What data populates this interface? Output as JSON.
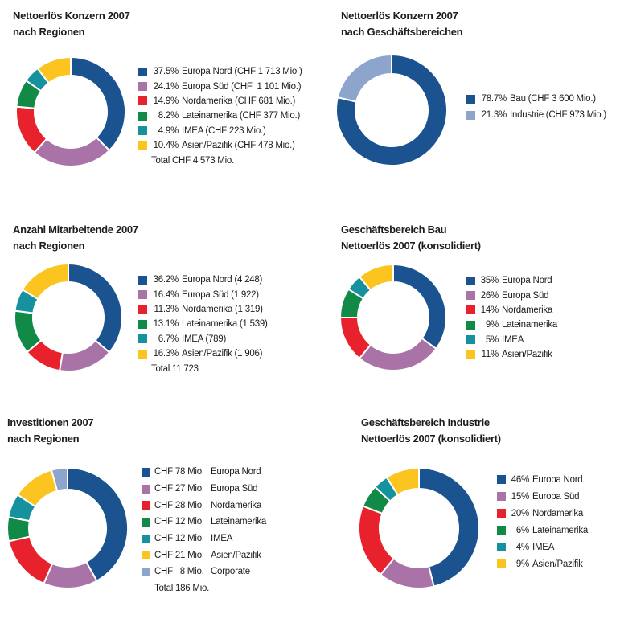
{
  "colors": {
    "europa_nord": "#1a5390",
    "europa_sud": "#a973a8",
    "nordamerika": "#e8222d",
    "lateinamerika": "#108a46",
    "imea": "#16919e",
    "asien_pazifik": "#fbc41e",
    "corporate": "#8da5cd",
    "bau": "#1a5390",
    "industrie": "#8da5cd",
    "text": "#1d1d1b",
    "background": "#ffffff"
  },
  "chart_data": [
    {
      "type": "donut",
      "title_lines": [
        "Nettoerlös Konzern 2007",
        "nach Regionen"
      ],
      "legend_position": "right",
      "total_label": "Total CHF 4 573 Mio.",
      "segments": [
        {
          "pct_label": "37.5%",
          "label": "Europa Nord (CHF 1 713 Mio.)",
          "value": 37.5,
          "color_key": "europa_nord"
        },
        {
          "pct_label": "24.1%",
          "label": "Europa Süd (CHF  1 101 Mio.)",
          "value": 24.1,
          "color_key": "europa_sud"
        },
        {
          "pct_label": "14.9%",
          "label": "Nordamerika (CHF 681 Mio.)",
          "value": 14.9,
          "color_key": "nordamerika"
        },
        {
          "pct_label": "8.2%",
          "label": "Lateinamerika (CHF 377 Mio.)",
          "value": 8.2,
          "color_key": "lateinamerika"
        },
        {
          "pct_label": "4.9%",
          "label": "IMEA (CHF 223 Mio.)",
          "value": 4.9,
          "color_key": "imea"
        },
        {
          "pct_label": "10.4%",
          "label": "Asien/Pazifik (CHF 478 Mio.)",
          "value": 10.4,
          "color_key": "asien_pazifik"
        }
      ]
    },
    {
      "type": "donut",
      "title_lines": [
        "Nettoerlös Konzern 2007",
        "nach Geschäftsbereichen"
      ],
      "legend_position": "right",
      "total_label": "",
      "segments": [
        {
          "pct_label": "78.7%",
          "label": "Bau (CHF 3 600 Mio.)",
          "value": 78.7,
          "color_key": "bau"
        },
        {
          "pct_label": "21.3%",
          "label": "Industrie (CHF 973 Mio.)",
          "value": 21.3,
          "color_key": "industrie"
        }
      ]
    },
    {
      "type": "donut",
      "title_lines": [
        "Anzahl Mitarbeitende 2007",
        "nach Regionen"
      ],
      "legend_position": "right",
      "total_label": "Total 11 723",
      "segments": [
        {
          "pct_label": "36.2%",
          "label": "Europa Nord (4 248)",
          "value": 36.2,
          "color_key": "europa_nord"
        },
        {
          "pct_label": "16.4%",
          "label": "Europa Süd (1 922)",
          "value": 16.4,
          "color_key": "europa_sud"
        },
        {
          "pct_label": "11.3%",
          "label": "Nordamerika (1 319)",
          "value": 11.3,
          "color_key": "nordamerika"
        },
        {
          "pct_label": "13.1%",
          "label": "Lateinamerika (1 539)",
          "value": 13.1,
          "color_key": "lateinamerika"
        },
        {
          "pct_label": "6.7%",
          "label": "IMEA (789)",
          "value": 6.7,
          "color_key": "imea"
        },
        {
          "pct_label": "16.3%",
          "label": "Asien/Pazifik (1 906)",
          "value": 16.3,
          "color_key": "asien_pazifik"
        }
      ]
    },
    {
      "type": "donut",
      "title_lines": [
        "Geschäftsbereich Bau",
        "Nettoerlös 2007 (konsolidiert)"
      ],
      "legend_position": "right",
      "total_label": "",
      "segments": [
        {
          "pct_label": "35%",
          "label": "Europa Nord",
          "value": 35,
          "color_key": "europa_nord"
        },
        {
          "pct_label": "26%",
          "label": "Europa Süd",
          "value": 26,
          "color_key": "europa_sud"
        },
        {
          "pct_label": "14%",
          "label": "Nordamerika",
          "value": 14,
          "color_key": "nordamerika"
        },
        {
          "pct_label": "9%",
          "label": "Lateinamerika",
          "value": 9,
          "color_key": "lateinamerika"
        },
        {
          "pct_label": "5%",
          "label": "IMEA",
          "value": 5,
          "color_key": "imea"
        },
        {
          "pct_label": "11%",
          "label": "Asien/Pazifik",
          "value": 11,
          "color_key": "asien_pazifik"
        }
      ]
    },
    {
      "type": "donut",
      "title_lines": [
        "Investitionen 2007",
        "nach Regionen"
      ],
      "legend_position": "right",
      "total_label": "Total 186 Mio.",
      "segments": [
        {
          "pct_label": "CHF 78 Mio.",
          "label": "Europa Nord",
          "value": 78,
          "color_key": "europa_nord"
        },
        {
          "pct_label": "CHF 27 Mio.",
          "label": "Europa Süd",
          "value": 27,
          "color_key": "europa_sud"
        },
        {
          "pct_label": "CHF 28 Mio.",
          "label": "Nordamerika",
          "value": 28,
          "color_key": "nordamerika"
        },
        {
          "pct_label": "CHF 12 Mio.",
          "label": "Lateinamerika",
          "value": 12,
          "color_key": "lateinamerika"
        },
        {
          "pct_label": "CHF 12 Mio.",
          "label": "IMEA",
          "value": 12,
          "color_key": "imea"
        },
        {
          "pct_label": "CHF 21 Mio.",
          "label": "Asien/Pazifik",
          "value": 21,
          "color_key": "asien_pazifik"
        },
        {
          "pct_label": "CHF   8 Mio.",
          "label": "Corporate",
          "value": 8,
          "color_key": "corporate"
        }
      ]
    },
    {
      "type": "donut",
      "title_lines": [
        "Geschäftsbereich Industrie",
        "Nettoerlös 2007 (konsolidiert)"
      ],
      "legend_position": "right",
      "total_label": "",
      "segments": [
        {
          "pct_label": "46%",
          "label": "Europa Nord",
          "value": 46,
          "color_key": "europa_nord"
        },
        {
          "pct_label": "15%",
          "label": "Europa Süd",
          "value": 15,
          "color_key": "europa_sud"
        },
        {
          "pct_label": "20%",
          "label": "Nordamerika",
          "value": 20,
          "color_key": "nordamerika"
        },
        {
          "pct_label": "6%",
          "label": "Lateinamerika",
          "value": 6,
          "color_key": "lateinamerika"
        },
        {
          "pct_label": "4%",
          "label": "IMEA",
          "value": 4,
          "color_key": "imea"
        },
        {
          "pct_label": "9%",
          "label": "Asien/Pazifik",
          "value": 9,
          "color_key": "asien_pazifik"
        }
      ]
    }
  ]
}
